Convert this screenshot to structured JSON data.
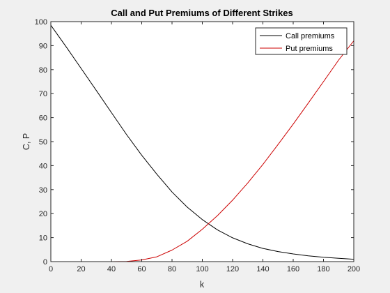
{
  "chart_data": {
    "type": "line",
    "title": "Call and Put Premiums of Different Strikes",
    "xlabel": "k",
    "ylabel": "C, P",
    "xlim": [
      0,
      200
    ],
    "ylim": [
      0,
      100
    ],
    "xticks": [
      0,
      20,
      40,
      60,
      80,
      100,
      120,
      140,
      160,
      180,
      200
    ],
    "yticks": [
      0,
      10,
      20,
      30,
      40,
      50,
      60,
      70,
      80,
      90,
      100
    ],
    "legend_position": "top-right",
    "grid": false,
    "x": [
      0,
      10,
      20,
      30,
      40,
      50,
      60,
      70,
      80,
      90,
      100,
      110,
      120,
      130,
      140,
      150,
      160,
      170,
      180,
      190,
      200
    ],
    "series": [
      {
        "name": "Call premiums",
        "color": "#000000",
        "values": [
          98.5,
          89.6,
          80.5,
          71.3,
          62.1,
          52.9,
          44.3,
          36.4,
          29.0,
          22.7,
          17.5,
          13.2,
          9.9,
          7.4,
          5.5,
          4.2,
          3.2,
          2.4,
          1.8,
          1.4,
          1.0
        ]
      },
      {
        "name": "Put premiums",
        "color": "#cc0000",
        "values": [
          0.0,
          0.0,
          0.0,
          0.0,
          0.0,
          0.1,
          0.7,
          2.0,
          4.8,
          8.5,
          13.5,
          19.2,
          25.6,
          32.8,
          40.5,
          48.8,
          57.3,
          66.1,
          75.0,
          84.0,
          92.0
        ]
      }
    ]
  }
}
